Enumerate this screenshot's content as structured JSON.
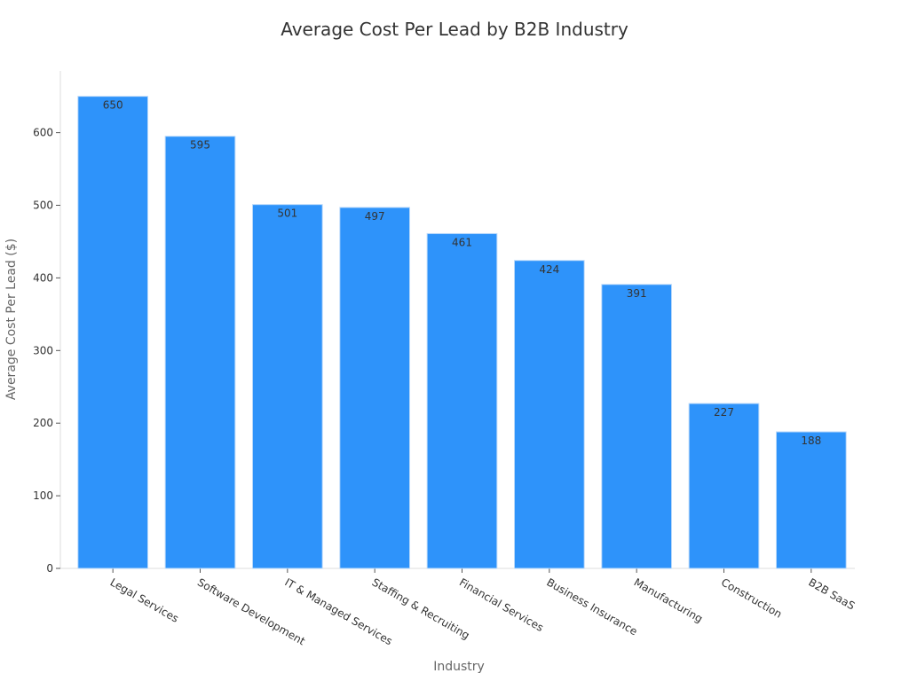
{
  "chart_data": {
    "type": "bar",
    "title": "Average Cost Per Lead by B2B Industry",
    "xlabel": "Industry",
    "ylabel": "Average Cost Per Lead ($)",
    "categories": [
      "Legal Services",
      "Software Development",
      "IT & Managed Services",
      "Staffing & Recruiting",
      "Financial Services",
      "Business Insurance",
      "Manufacturing",
      "Construction",
      "B2B SaaS"
    ],
    "values": [
      650,
      595,
      501,
      497,
      461,
      424,
      391,
      227,
      188
    ],
    "data_labels": [
      "650",
      "595",
      "501",
      "497",
      "461",
      "424",
      "391",
      "227",
      "188"
    ],
    "yticks": [
      0,
      100,
      200,
      300,
      400,
      500,
      600
    ],
    "ytick_labels": [
      "0",
      "100",
      "200",
      "300",
      "400",
      "500",
      "600"
    ],
    "ylim": [
      0,
      685
    ],
    "grid": false,
    "legend": "none",
    "bar_color": "#2E93FA",
    "bar_edge_color": "#b8d8fa"
  }
}
